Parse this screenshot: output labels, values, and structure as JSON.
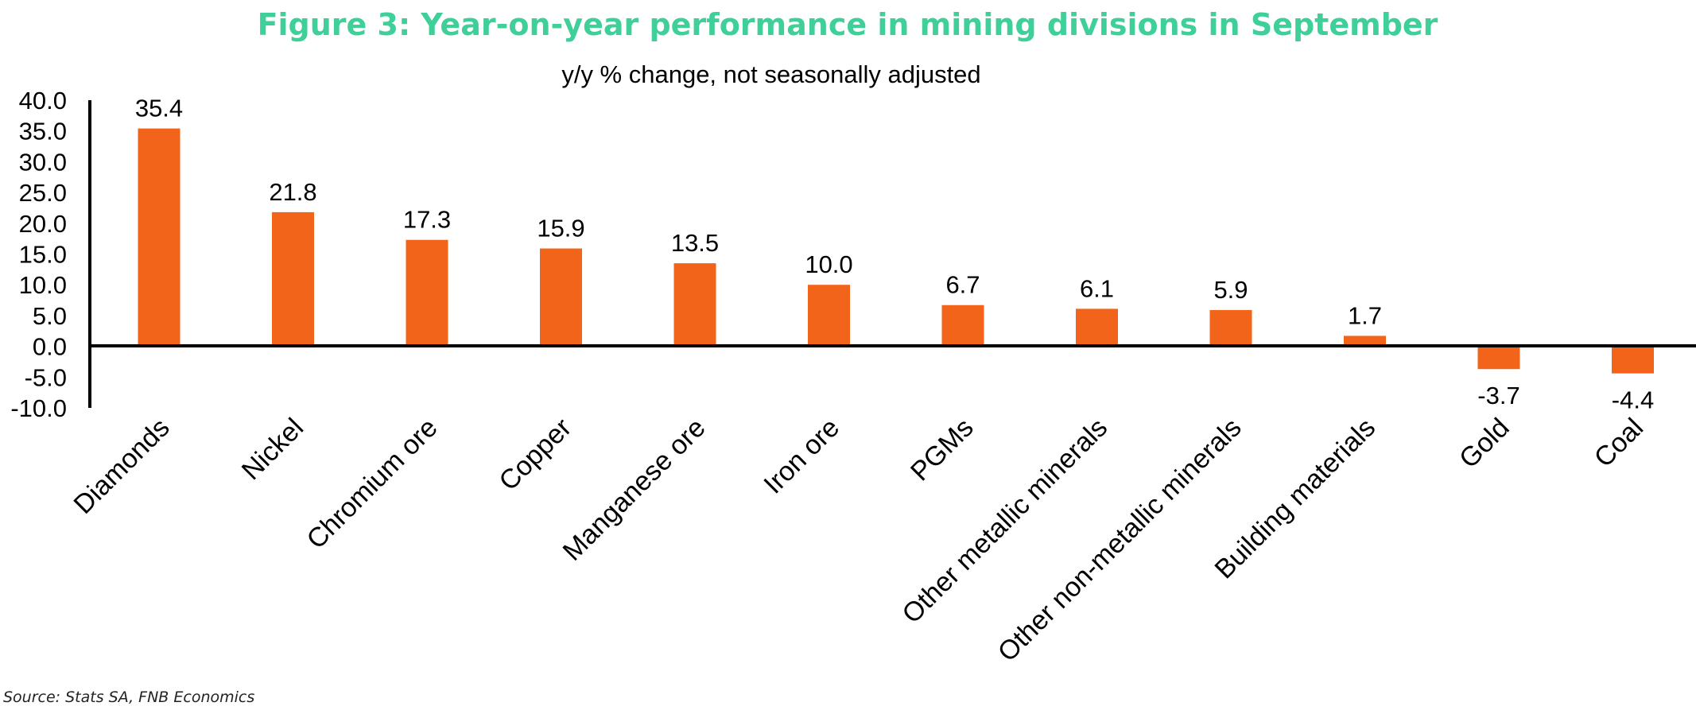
{
  "chart_data": {
    "type": "bar",
    "title": "Figure 3: Year-on-year performance in mining divisions in September",
    "subtitle": "y/y % change, not seasonally adjusted",
    "xlabel": "",
    "ylabel": "",
    "categories": [
      "Diamonds",
      "Nickel",
      "Chromium ore",
      "Copper",
      "Manganese ore",
      "Iron ore",
      "PGMs",
      "Other metallic minerals",
      "Other non-metallic minerals",
      "Building materials",
      "Gold",
      "Coal"
    ],
    "values": [
      35.4,
      21.8,
      17.3,
      15.9,
      13.5,
      10.0,
      6.7,
      6.1,
      5.9,
      1.7,
      -3.7,
      -4.4
    ],
    "value_labels": [
      "35.4",
      "21.8",
      "17.3",
      "15.9",
      "13.5",
      "10.0",
      "6.7",
      "6.1",
      "5.9",
      "1.7",
      "-3.7",
      "-4.4"
    ],
    "ylim": [
      -10,
      40
    ],
    "yticks": [
      40,
      35,
      30,
      25,
      20,
      15,
      10,
      5,
      0,
      -5,
      -10
    ],
    "ytick_labels": [
      "40.0",
      "35.0",
      "30.0",
      "25.0",
      "20.0",
      "15.0",
      "10.0",
      "5.0",
      "0.0",
      "-5.0",
      "-10.0"
    ],
    "grid": false,
    "legend": "none",
    "bar_color": "#f26419",
    "title_color": "#3fcf98",
    "source": "Source: Stats SA, FNB Economics"
  }
}
